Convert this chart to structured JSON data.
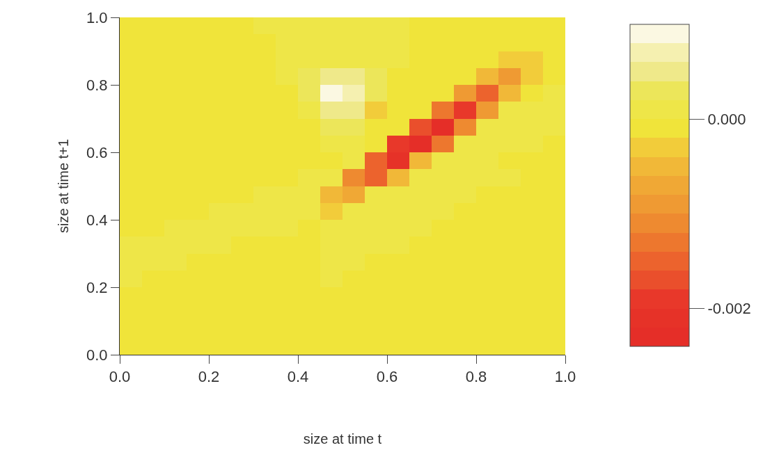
{
  "chart_data": {
    "type": "heatmap",
    "xlabel": "size at time t",
    "ylabel": "size at time t+1",
    "cells": [
      [
        -0.0001,
        -0.0001,
        -0.0001,
        -0.0001,
        -0.0001,
        -0.0001,
        0.0001,
        0.0001,
        0.0001,
        0.0001,
        0.0001,
        0.0001,
        0.0001,
        -0.0001,
        -0.0001,
        -0.0001,
        -0.0001,
        -0.0001,
        -0.0001,
        -0.0001
      ],
      [
        -0.0001,
        -0.0001,
        -0.0001,
        -0.0001,
        -0.0001,
        -0.0001,
        -0.0001,
        0.0001,
        0.0001,
        0.0001,
        0.0001,
        0.0001,
        0.0001,
        -0.0001,
        -0.0001,
        -0.0001,
        -0.0001,
        -0.0001,
        -0.0001,
        -0.0001
      ],
      [
        -0.0001,
        -0.0001,
        -0.0001,
        -0.0001,
        -0.0001,
        -0.0001,
        -0.0001,
        0.0001,
        0.0001,
        0.0001,
        0.0001,
        0.0001,
        0.0001,
        -0.0001,
        -0.0001,
        -0.0001,
        -0.0001,
        -0.0003,
        -0.0003,
        -0.0001
      ],
      [
        -0.0001,
        -0.0001,
        -0.0001,
        -0.0001,
        -0.0001,
        -0.0001,
        -0.0001,
        0.0001,
        0.0003,
        0.0005,
        0.0005,
        0.0003,
        -0.0001,
        -0.0001,
        -0.0001,
        -0.0001,
        -0.0005,
        -0.0009,
        -0.0003,
        -0.0001
      ],
      [
        -0.0001,
        -0.0001,
        -0.0001,
        -0.0001,
        -0.0001,
        -0.0001,
        -0.0001,
        -0.0001,
        0.0003,
        0.0009,
        0.0007,
        0.0003,
        -0.0001,
        -0.0001,
        -0.0001,
        -0.0009,
        -0.0015,
        -0.0005,
        -0.0001,
        0.0001
      ],
      [
        -0.0001,
        -0.0001,
        -0.0001,
        -0.0001,
        -0.0001,
        -0.0001,
        -0.0001,
        -0.0001,
        0.0001,
        0.0005,
        0.0005,
        -0.0003,
        -0.0001,
        -0.0001,
        -0.0013,
        -0.0019,
        -0.0009,
        0.0001,
        0.0001,
        0.0001
      ],
      [
        -0.0001,
        -0.0001,
        -0.0001,
        -0.0001,
        -0.0001,
        -0.0001,
        -0.0001,
        -0.0001,
        -0.0001,
        0.0003,
        0.0003,
        -0.0001,
        -0.0001,
        -0.0017,
        -0.0023,
        -0.0011,
        0.0001,
        0.0001,
        0.0001,
        0.0001
      ],
      [
        -0.0001,
        -0.0001,
        -0.0001,
        -0.0001,
        -0.0001,
        -0.0001,
        -0.0001,
        -0.0001,
        -0.0001,
        0.0001,
        0.0001,
        -0.0001,
        -0.0019,
        -0.0023,
        -0.0013,
        0.0001,
        0.0001,
        0.0001,
        0.0001,
        -0.0001
      ],
      [
        -0.0001,
        -0.0001,
        -0.0001,
        -0.0001,
        -0.0001,
        -0.0001,
        -0.0001,
        -0.0001,
        -0.0001,
        -0.0001,
        0.0001,
        -0.0015,
        -0.0021,
        -0.0005,
        0.0001,
        0.0001,
        0.0001,
        -0.0001,
        -0.0001,
        -0.0001
      ],
      [
        -0.0001,
        -0.0001,
        -0.0001,
        -0.0001,
        -0.0001,
        -0.0001,
        -0.0001,
        -0.0001,
        0.0001,
        0.0001,
        -0.0011,
        -0.0015,
        -0.0005,
        0.0001,
        0.0001,
        0.0001,
        0.0001,
        0.0001,
        -0.0001,
        -0.0001
      ],
      [
        -0.0001,
        -0.0001,
        -0.0001,
        -0.0001,
        -0.0001,
        -0.0001,
        0.0001,
        0.0001,
        0.0001,
        -0.0005,
        -0.0007,
        0.0001,
        0.0001,
        0.0001,
        0.0001,
        0.0001,
        -0.0001,
        -0.0001,
        -0.0001,
        -0.0001
      ],
      [
        -0.0001,
        -0.0001,
        -0.0001,
        -0.0001,
        0.0001,
        0.0001,
        0.0001,
        0.0001,
        0.0001,
        -0.0003,
        0.0001,
        0.0001,
        0.0001,
        0.0001,
        0.0001,
        -0.0001,
        -0.0001,
        -0.0001,
        -0.0001,
        -0.0001
      ],
      [
        -0.0001,
        -0.0001,
        0.0001,
        0.0001,
        0.0001,
        0.0001,
        0.0001,
        0.0001,
        -0.0001,
        0.0001,
        0.0001,
        0.0001,
        0.0001,
        0.0001,
        -0.0001,
        -0.0001,
        -0.0001,
        -0.0001,
        -0.0001,
        -0.0001
      ],
      [
        0.0001,
        0.0001,
        0.0001,
        0.0001,
        0.0001,
        -0.0001,
        -0.0001,
        -0.0001,
        -0.0001,
        0.0001,
        0.0001,
        0.0001,
        0.0001,
        -0.0001,
        -0.0001,
        -0.0001,
        -0.0001,
        -0.0001,
        -0.0001,
        -0.0001
      ],
      [
        0.0001,
        0.0001,
        0.0001,
        -0.0001,
        -0.0001,
        -0.0001,
        -0.0001,
        -0.0001,
        -0.0001,
        0.0001,
        0.0001,
        -0.0001,
        -0.0001,
        -0.0001,
        -0.0001,
        -0.0001,
        -0.0001,
        -0.0001,
        -0.0001,
        -0.0001
      ],
      [
        0.0001,
        -0.0001,
        -0.0001,
        -0.0001,
        -0.0001,
        -0.0001,
        -0.0001,
        -0.0001,
        -0.0001,
        0.0001,
        -0.0001,
        -0.0001,
        -0.0001,
        -0.0001,
        -0.0001,
        -0.0001,
        -0.0001,
        -0.0001,
        -0.0001,
        -0.0001
      ],
      [
        -0.0001,
        -0.0001,
        -0.0001,
        -0.0001,
        -0.0001,
        -0.0001,
        -0.0001,
        -0.0001,
        -0.0001,
        -0.0001,
        -0.0001,
        -0.0001,
        -0.0001,
        -0.0001,
        -0.0001,
        -0.0001,
        -0.0001,
        -0.0001,
        -0.0001,
        -0.0001
      ],
      [
        -0.0001,
        -0.0001,
        -0.0001,
        -0.0001,
        -0.0001,
        -0.0001,
        -0.0001,
        -0.0001,
        -0.0001,
        -0.0001,
        -0.0001,
        -0.0001,
        -0.0001,
        -0.0001,
        -0.0001,
        -0.0001,
        -0.0001,
        -0.0001,
        -0.0001,
        -0.0001
      ],
      [
        -0.0001,
        -0.0001,
        -0.0001,
        -0.0001,
        -0.0001,
        -0.0001,
        -0.0001,
        -0.0001,
        -0.0001,
        -0.0001,
        -0.0001,
        -0.0001,
        -0.0001,
        -0.0001,
        -0.0001,
        -0.0001,
        -0.0001,
        -0.0001,
        -0.0001,
        -0.0001
      ],
      [
        -0.0001,
        -0.0001,
        -0.0001,
        -0.0001,
        -0.0001,
        -0.0001,
        -0.0001,
        -0.0001,
        -0.0001,
        -0.0001,
        -0.0001,
        -0.0001,
        -0.0001,
        -0.0001,
        -0.0001,
        -0.0001,
        -0.0001,
        -0.0001,
        -0.0001,
        -0.0001
      ]
    ],
    "colors": [
      "#e52e28",
      "#e63228",
      "#e8382a",
      "#ea4f2c",
      "#ec632d",
      "#ed772e",
      "#ee8a30",
      "#ef9a33",
      "#f0a835",
      "#f1b838",
      "#f2cc3a",
      "#f0e43a",
      "#eee648",
      "#ece65a",
      "#efe98a",
      "#f5f0b0",
      "#fbf8e2"
    ],
    "clim": [
      -0.0024,
      0.001
    ],
    "cticks": [
      {
        "value": -0.002,
        "label": "-0.002"
      },
      {
        "value": 0,
        "label": "0.000"
      }
    ],
    "xlim": [
      0,
      1
    ],
    "ylim": [
      0,
      1
    ],
    "xticks": [
      {
        "value": 0,
        "label": "0.0"
      },
      {
        "value": 0.2,
        "label": "0.2"
      },
      {
        "value": 0.4,
        "label": "0.4"
      },
      {
        "value": 0.6,
        "label": "0.6"
      },
      {
        "value": 0.8,
        "label": "0.8"
      },
      {
        "value": 1,
        "label": "1.0"
      }
    ],
    "yticks": [
      {
        "value": 0,
        "label": "0.0"
      },
      {
        "value": 0.2,
        "label": "0.2"
      },
      {
        "value": 0.4,
        "label": "0.4"
      },
      {
        "value": 0.6,
        "label": "0.6"
      },
      {
        "value": 0.8,
        "label": "0.8"
      },
      {
        "value": 1,
        "label": "1.0"
      }
    ]
  }
}
